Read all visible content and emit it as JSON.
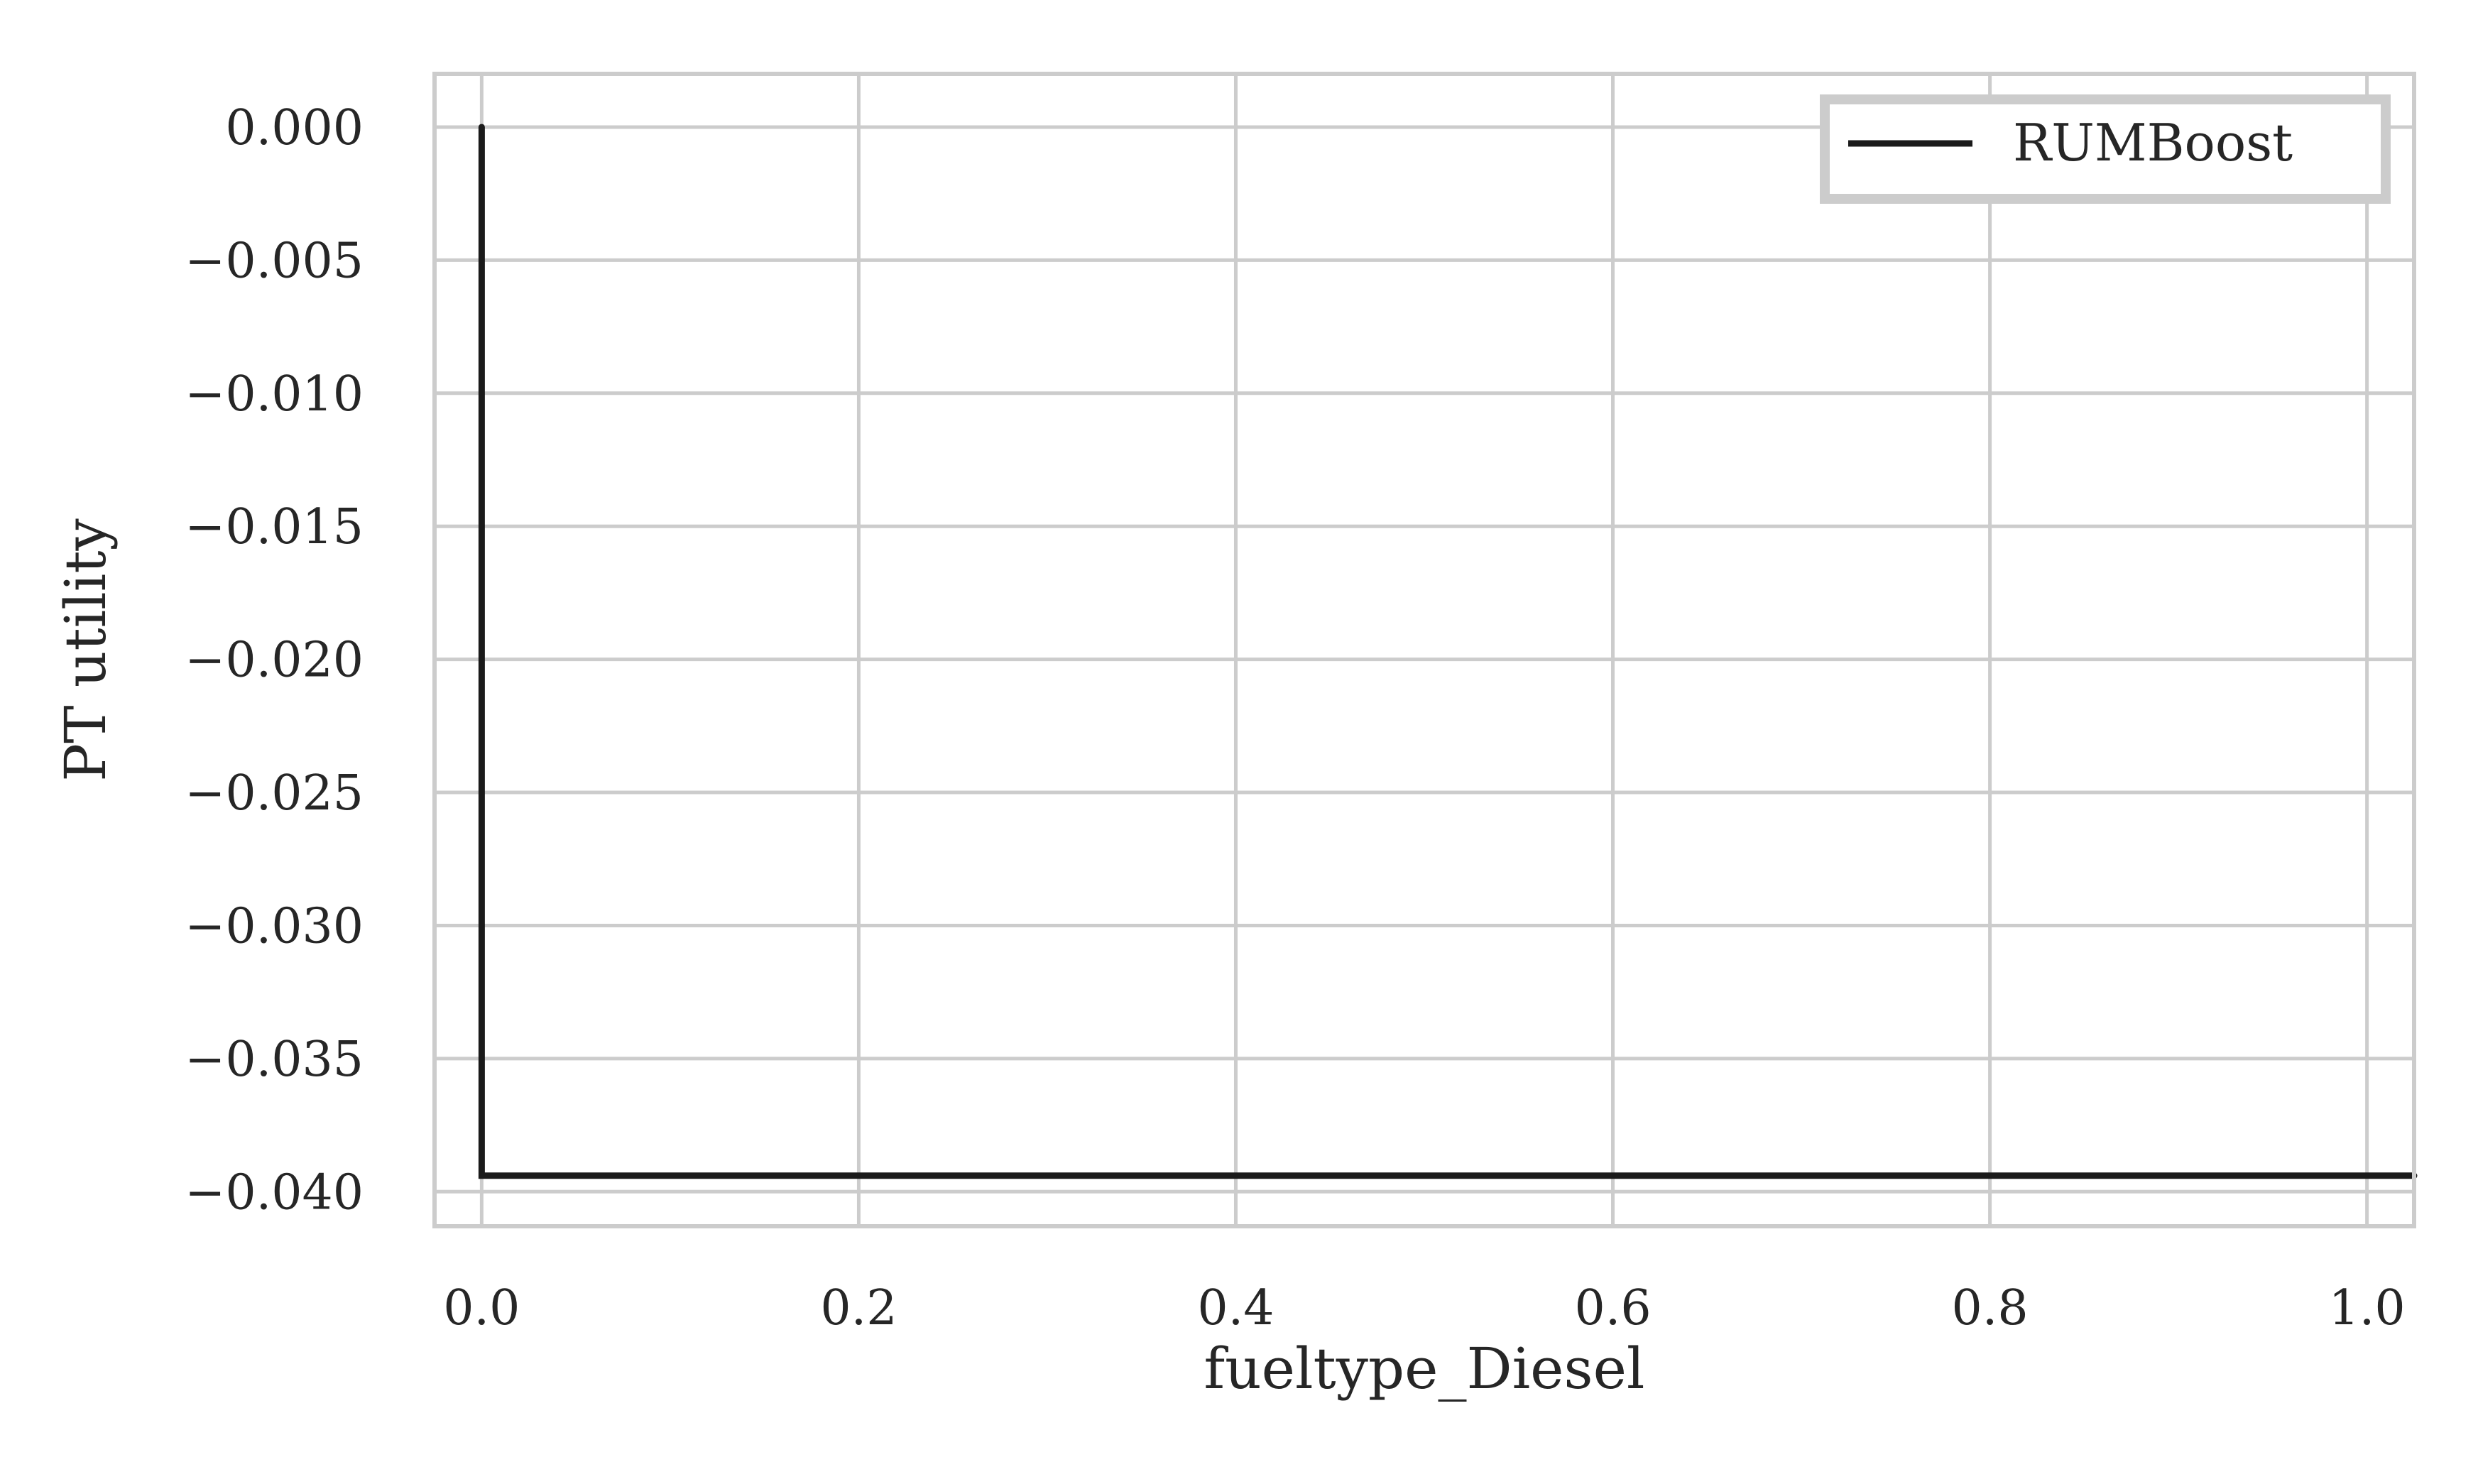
{
  "chart_data": {
    "type": "line",
    "xlabel": "fueltype_Diesel",
    "ylabel": "PT utility",
    "xlim": [
      -0.025,
      1.025
    ],
    "ylim": [
      -0.0413,
      0.002
    ],
    "x_ticks": [
      0.0,
      0.2,
      0.4,
      0.6,
      0.8,
      1.0
    ],
    "x_tick_labels": [
      "0.0",
      "0.2",
      "0.4",
      "0.6",
      "0.8",
      "1.0"
    ],
    "y_ticks": [
      0.0,
      -0.005,
      -0.01,
      -0.015,
      -0.02,
      -0.025,
      -0.03,
      -0.035,
      -0.04
    ],
    "y_tick_labels": [
      "0.000",
      "−0.005",
      "−0.010",
      "−0.015",
      "−0.020",
      "−0.025",
      "−0.030",
      "−0.035",
      "−0.040"
    ],
    "grid": true,
    "legend_position": "top-right",
    "series": [
      {
        "name": "RUMBoost",
        "color": "#1a1a1a",
        "x": [
          0.0,
          0.0,
          1.025
        ],
        "y": [
          0.0,
          -0.0394,
          -0.0394
        ]
      }
    ]
  },
  "colors": {
    "grid": "#cccccc",
    "frame": "#cccccc",
    "text": "#262626"
  }
}
